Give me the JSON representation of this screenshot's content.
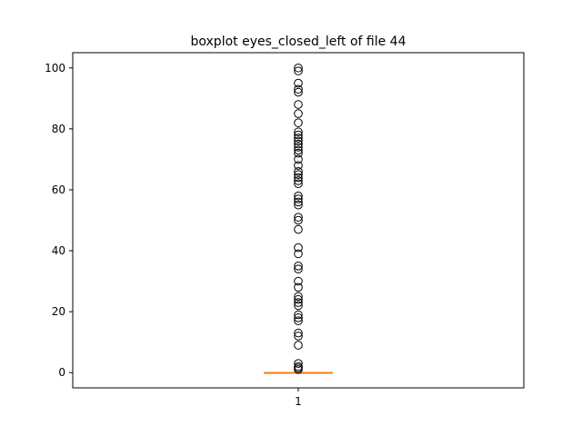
{
  "chart_data": {
    "type": "boxplot",
    "title": "boxplot eyes_closed_left of file 44",
    "xlabel": "",
    "ylabel": "",
    "categories": [
      "1"
    ],
    "ylim": [
      -5,
      105
    ],
    "yticks": [
      0,
      20,
      40,
      60,
      80,
      100
    ],
    "ytick_labels": [
      "0",
      "20",
      "40",
      "60",
      "80",
      "100"
    ],
    "grid": false,
    "box": {
      "min": 0,
      "q1": 0,
      "median": 0,
      "q3": 0,
      "max": 0
    },
    "outliers": [
      1,
      1.5,
      2,
      3,
      9,
      12,
      13,
      17,
      18,
      19,
      22,
      23,
      24,
      25,
      28,
      30,
      34,
      35,
      39,
      41,
      47,
      50,
      51,
      55,
      56,
      57,
      58,
      62,
      63,
      64,
      65,
      66,
      68,
      70,
      72,
      73,
      74,
      75,
      76,
      77,
      78,
      79,
      82,
      85,
      88,
      92,
      93,
      95,
      99,
      100
    ]
  }
}
